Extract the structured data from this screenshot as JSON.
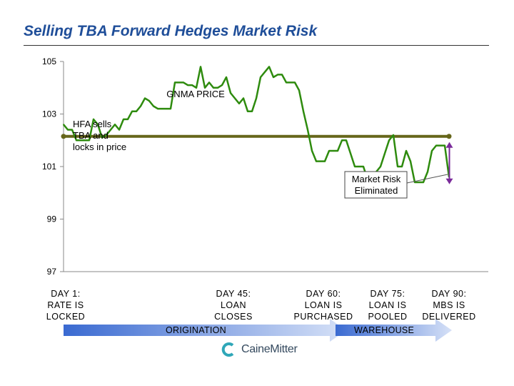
{
  "title": "Selling TBA Forward Hedges Market Risk",
  "chart_data": {
    "type": "line",
    "title": "GNMA PRICE",
    "ylim": [
      97,
      105
    ],
    "yticks": [
      105,
      103,
      101,
      99,
      97
    ],
    "x": [
      0,
      1,
      2,
      3,
      4,
      5,
      6,
      7,
      8,
      9,
      10,
      11,
      12,
      13,
      14,
      15,
      16,
      17,
      18,
      19,
      20,
      21,
      22,
      23,
      24,
      25,
      26,
      27,
      28,
      29,
      30,
      31,
      32,
      33,
      34,
      35,
      36,
      37,
      38,
      39,
      40,
      41,
      42,
      43,
      44,
      45,
      46,
      47,
      48,
      49,
      50,
      51,
      52,
      53,
      54,
      55,
      56,
      57,
      58,
      59,
      60,
      61,
      62,
      63,
      64,
      65,
      66,
      67,
      68,
      69,
      70,
      71,
      72,
      73,
      74,
      75,
      76,
      77,
      78,
      79,
      80,
      81,
      82,
      83,
      84,
      85,
      86,
      87,
      88,
      89,
      90
    ],
    "series": [
      {
        "name": "GNMA PRICE",
        "color": "#2e8b0e",
        "values": [
          102.6,
          102.4,
          102.4,
          102.0,
          102.0,
          102.0,
          102.0,
          102.8,
          102.6,
          102.1,
          102.2,
          102.4,
          102.6,
          102.4,
          102.8,
          102.8,
          103.1,
          103.1,
          103.3,
          103.6,
          103.5,
          103.3,
          103.2,
          103.2,
          103.2,
          103.2,
          104.2,
          104.2,
          104.2,
          104.1,
          104.1,
          104.0,
          104.8,
          104.0,
          104.2,
          104.0,
          104.0,
          104.1,
          104.4,
          103.8,
          103.6,
          103.4,
          103.6,
          103.1,
          103.1,
          103.6,
          104.4,
          104.6,
          104.8,
          104.4,
          104.5,
          104.5,
          104.2,
          104.2,
          104.2,
          103.9,
          103.1,
          102.4,
          101.6,
          101.2,
          101.2,
          101.2,
          101.6,
          101.6,
          101.6,
          102.0,
          102.0,
          101.5,
          101.0,
          101.0,
          101.0,
          100.5,
          100.5,
          100.8,
          101.0,
          101.5,
          102.0,
          102.2,
          101.0,
          101.0,
          101.6,
          101.2,
          100.4,
          100.4,
          100.4,
          100.8,
          101.6,
          101.8,
          101.8,
          101.8,
          100.6
        ]
      }
    ],
    "locked_price_line": {
      "value": 102.15,
      "x_start": 0,
      "x_end": 90,
      "color": "#66661a"
    },
    "annotations": [
      {
        "text": "GNMA PRICE"
      },
      {
        "text": "HFA sells\nTBA and\nlocks in price"
      },
      {
        "text": "Market Risk\nEliminated"
      }
    ],
    "milestones": [
      {
        "day": 0,
        "label": "DAY 1:\nRATE  IS\nLOCKED"
      },
      {
        "day": 45,
        "label": "DAY 45:\nLOAN\nCLOSES"
      },
      {
        "day": 60,
        "label": "DAY 60:\nLOAN  IS\nPURCHASED"
      },
      {
        "day": 75,
        "label": "DAY 75:\nLOAN  IS\nPOOLED"
      },
      {
        "day": 90,
        "label": "DAY 90:\nMBS IS\nDELIVERED"
      }
    ],
    "phases": [
      "ORIGINATION",
      "WAREHOUSE"
    ]
  },
  "logo": {
    "text": "CaineMitter",
    "color": "#2fa7b8"
  }
}
